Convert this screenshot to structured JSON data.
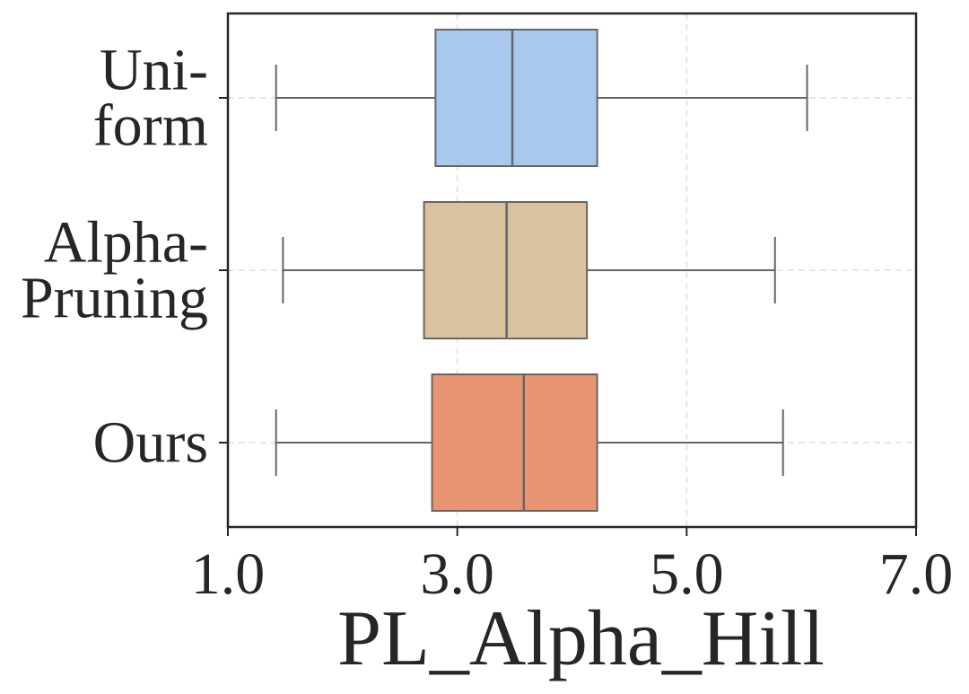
{
  "chart_data": {
    "type": "boxplot",
    "orientation": "horizontal",
    "title": "",
    "xlabel": "PL_Alpha_Hill",
    "ylabel": "",
    "xlim": [
      1.0,
      7.0
    ],
    "xticks": [
      1.0,
      3.0,
      5.0,
      7.0
    ],
    "xtick_labels": [
      "1.0",
      "3.0",
      "5.0",
      "7.0"
    ],
    "grid": true,
    "categories": [
      {
        "label_lines": [
          "Uni-",
          "form"
        ],
        "color": "#a8c8ee",
        "whisker_low": 1.42,
        "q1": 2.81,
        "median": 3.48,
        "q3": 4.22,
        "whisker_high": 6.05
      },
      {
        "label_lines": [
          "Alpha-",
          "Pruning"
        ],
        "color": "#d9c29d",
        "whisker_low": 1.48,
        "q1": 2.71,
        "median": 3.43,
        "q3": 4.13,
        "whisker_high": 5.77
      },
      {
        "label_lines": [
          "Ours"
        ],
        "color": "#e89473",
        "whisker_low": 1.42,
        "q1": 2.78,
        "median": 3.58,
        "q3": 4.22,
        "whisker_high": 5.84
      }
    ],
    "colors": {
      "edge": "#666666",
      "axis": "#262626",
      "grid": "#dedede"
    }
  }
}
